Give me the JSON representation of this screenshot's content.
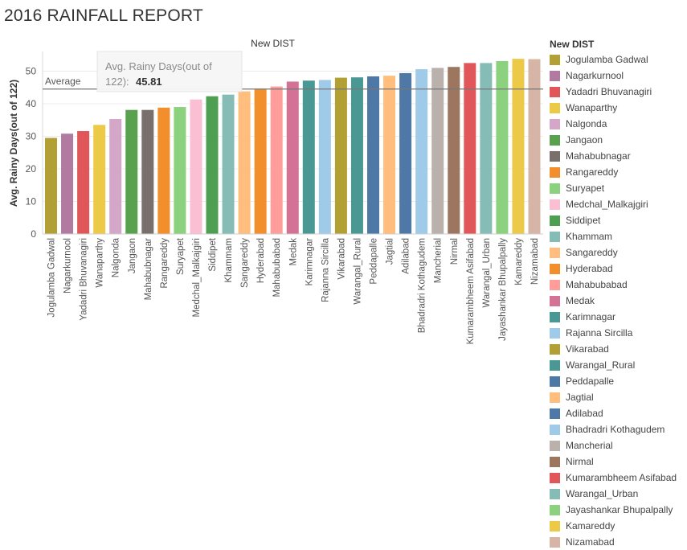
{
  "page_title": "2016 RAINFALL REPORT",
  "chart_data": {
    "type": "bar",
    "header": "New DIST",
    "ylabel": "Avg. Rainy Days(out of 122)",
    "ylim": [
      0,
      55
    ],
    "yticks": [
      0,
      10,
      20,
      30,
      40,
      50
    ],
    "reference_line": {
      "label": "Average",
      "value": 44.5
    },
    "tooltip": {
      "label": "Avg. Rainy Days(out of 122):",
      "value": "45.81"
    },
    "categories": [
      "Jogulamba Gadwal",
      "Nagarkurnool",
      "Yadadri Bhuvanagiri",
      "Wanaparthy",
      "Nalgonda",
      "Jangaon",
      "Mahabubnagar",
      "Rangareddy",
      "Suryapet",
      "Medchal_Malkajgiri",
      "Siddipet",
      "Khammam",
      "Sangareddy",
      "Hyderabad",
      "Mahabubabad",
      "Medak",
      "Karimnagar",
      "Rajanna Sircilla",
      "Vikarabad",
      "Warangal_Rural",
      "Peddapalle",
      "Jagtial",
      "Adilabad",
      "Bhadradri Kothagudem",
      "Mancherial",
      "Nirmal",
      "Kumarambheem Asifabad",
      "Warangal_Urban",
      "Jayashankar Bhupalpally",
      "Kamareddy",
      "Nizamabad"
    ],
    "values": [
      29.5,
      30.8,
      31.6,
      33.5,
      35.3,
      38.1,
      38.1,
      38.8,
      39.0,
      41.3,
      42.3,
      42.8,
      43.8,
      44.6,
      45.3,
      46.8,
      47.1,
      47.3,
      48.0,
      48.1,
      48.4,
      48.6,
      49.4,
      50.6,
      51.0,
      51.3,
      52.5,
      52.5,
      53.1,
      53.8,
      53.7
    ],
    "colors": [
      "#b3a035",
      "#b07aa1",
      "#e15759",
      "#edc948",
      "#d4a6c8",
      "#59a14f",
      "#79706e",
      "#f28e2b",
      "#8cd17d",
      "#fabfd2",
      "#4e9f52",
      "#86bcb6",
      "#ffbe7d",
      "#f28e2b",
      "#ff9d9a",
      "#d37295",
      "#499894",
      "#a0cbe8",
      "#b3a035",
      "#499894",
      "#4e79a7",
      "#ffbe7d",
      "#4e79a7",
      "#a0cbe8",
      "#bab0ac",
      "#9d7660",
      "#e15759",
      "#86bcb6",
      "#8cd17d",
      "#edc948",
      "#d7b5a6"
    ]
  },
  "legend": {
    "title": "New DIST",
    "items": [
      "Jogulamba Gadwal",
      "Nagarkurnool",
      "Yadadri Bhuvanagiri",
      "Wanaparthy",
      "Nalgonda",
      "Jangaon",
      "Mahabubnagar",
      "Rangareddy",
      "Suryapet",
      "Medchal_Malkajgiri",
      "Siddipet",
      "Khammam",
      "Sangareddy",
      "Hyderabad",
      "Mahabubabad",
      "Medak",
      "Karimnagar",
      "Rajanna Sircilla",
      "Vikarabad",
      "Warangal_Rural",
      "Peddapalle",
      "Jagtial",
      "Adilabad",
      "Bhadradri Kothagudem",
      "Mancherial",
      "Nirmal",
      "Kumarambheem Asifabad",
      "Warangal_Urban",
      "Jayashankar Bhupalpally",
      "Kamareddy",
      "Nizamabad"
    ]
  }
}
